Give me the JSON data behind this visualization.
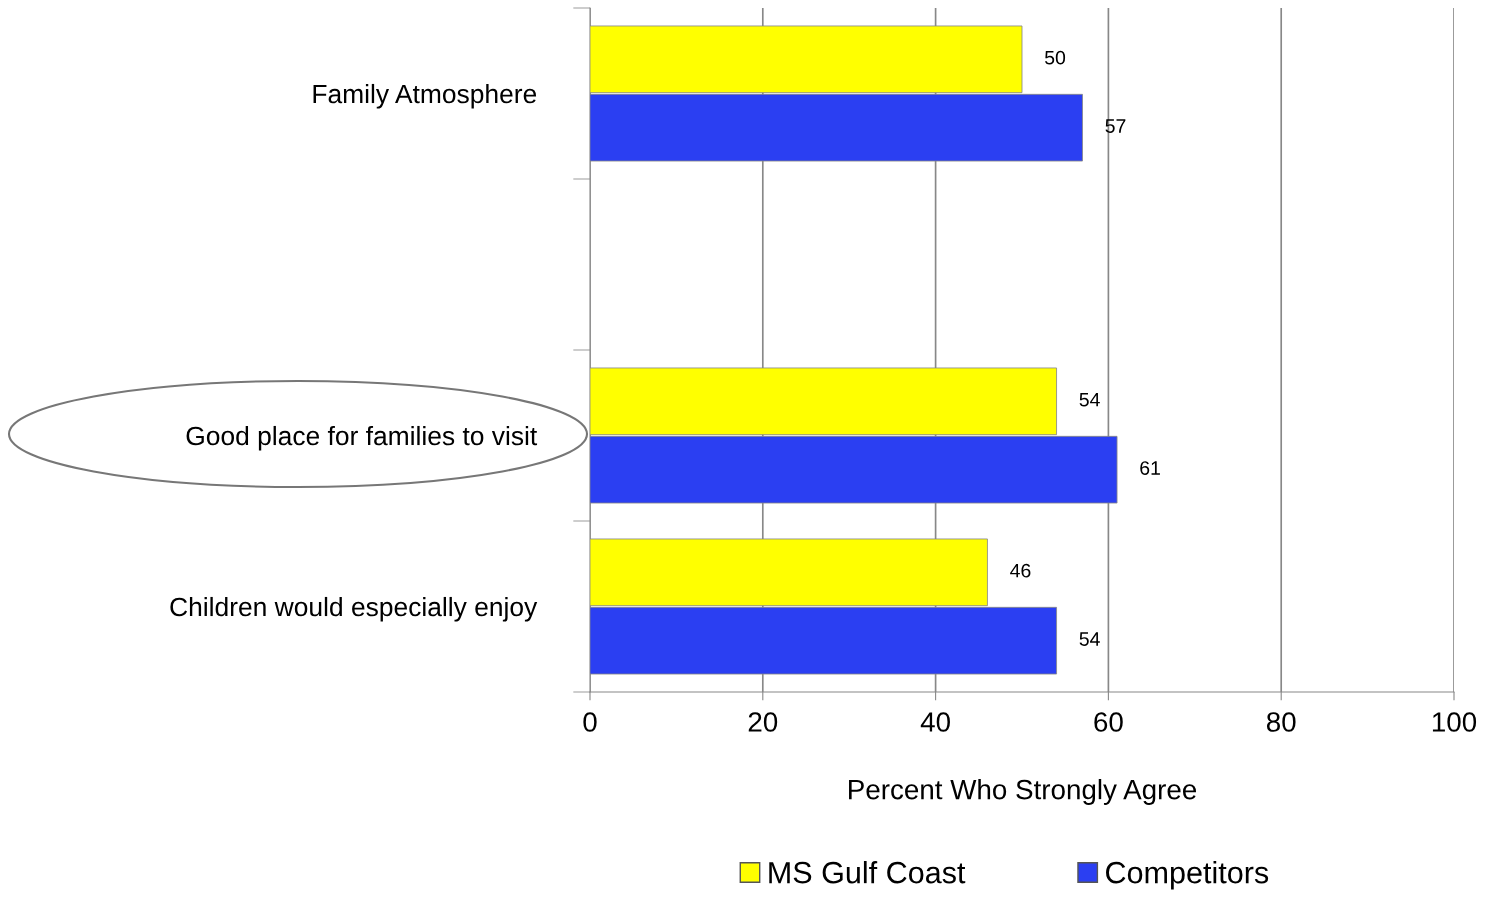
{
  "chart_data": {
    "type": "bar",
    "orientation": "horizontal",
    "categories": [
      "Family Atmosphere",
      null,
      "Good place for families to visit",
      "Children would especially enjoy"
    ],
    "series": [
      {
        "name": "MS Gulf Coast",
        "color": "#ffff00",
        "values": [
          50,
          null,
          54,
          46
        ]
      },
      {
        "name": "Competitors",
        "color": "#2b3ff2",
        "values": [
          57,
          null,
          61,
          54
        ]
      }
    ],
    "xlabel": "Percent Who Strongly Agree",
    "xlim": [
      0,
      100
    ],
    "xticks": [
      0,
      20,
      40,
      60,
      80,
      100
    ],
    "grid": "x",
    "legend": "bottom",
    "data_labels": true
  }
}
